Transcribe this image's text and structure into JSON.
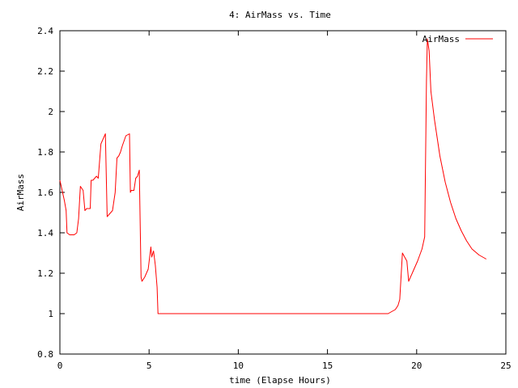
{
  "chart_data": {
    "type": "line",
    "title": "4: AirMass vs. Time",
    "xlabel": "time (Elapse Hours)",
    "ylabel": "AirMass",
    "xlim": [
      0,
      25
    ],
    "ylim": [
      0.8,
      2.4
    ],
    "xticks": [
      0,
      5,
      10,
      15,
      20,
      25
    ],
    "xtick_labels": [
      "0",
      "5",
      "10",
      "15",
      "20",
      "25"
    ],
    "yticks": [
      0.8,
      1.0,
      1.2,
      1.4,
      1.6,
      1.8,
      2.0,
      2.2,
      2.4
    ],
    "ytick_labels": [
      "0.8",
      "1",
      "1.2",
      "1.4",
      "1.6",
      "1.8",
      "2",
      "2.2",
      "2.4"
    ],
    "grid": false,
    "legend_position": "top-right",
    "series": [
      {
        "name": "AirMass",
        "color": "#ff0000",
        "x": [
          0,
          0.1,
          0.25,
          0.35,
          0.4,
          0.55,
          0.8,
          0.95,
          1.05,
          1.15,
          1.3,
          1.4,
          1.5,
          1.7,
          1.75,
          1.85,
          2.05,
          2.15,
          2.3,
          2.55,
          2.65,
          2.95,
          3.1,
          3.2,
          3.3,
          3.4,
          3.5,
          3.7,
          3.9,
          3.95,
          4.0,
          4.15,
          4.25,
          4.35,
          4.45,
          4.55,
          4.6,
          4.75,
          4.95,
          5.1,
          5.15,
          5.25,
          5.35,
          5.45,
          5.5,
          10.0,
          15.0,
          18.4,
          18.6,
          18.8,
          18.95,
          19.05,
          19.2,
          19.45,
          19.55,
          19.8,
          20.05,
          20.3,
          20.45,
          20.55,
          20.6,
          20.7,
          20.8,
          21.0,
          21.3,
          21.6,
          21.9,
          22.2,
          22.5,
          22.8,
          23.1,
          23.5,
          23.9
        ],
        "y": [
          1.66,
          1.62,
          1.56,
          1.51,
          1.4,
          1.39,
          1.39,
          1.4,
          1.47,
          1.63,
          1.61,
          1.51,
          1.52,
          1.52,
          1.66,
          1.66,
          1.68,
          1.67,
          1.84,
          1.89,
          1.48,
          1.51,
          1.6,
          1.77,
          1.78,
          1.8,
          1.83,
          1.88,
          1.89,
          1.6,
          1.61,
          1.61,
          1.67,
          1.68,
          1.71,
          1.18,
          1.16,
          1.18,
          1.22,
          1.33,
          1.28,
          1.31,
          1.24,
          1.13,
          1.0,
          1.0,
          1.0,
          1.0,
          1.01,
          1.02,
          1.04,
          1.07,
          1.3,
          1.26,
          1.16,
          1.21,
          1.26,
          1.32,
          1.38,
          2.15,
          2.36,
          2.3,
          2.1,
          1.96,
          1.78,
          1.65,
          1.55,
          1.47,
          1.41,
          1.36,
          1.32,
          1.29,
          1.27
        ]
      }
    ]
  }
}
